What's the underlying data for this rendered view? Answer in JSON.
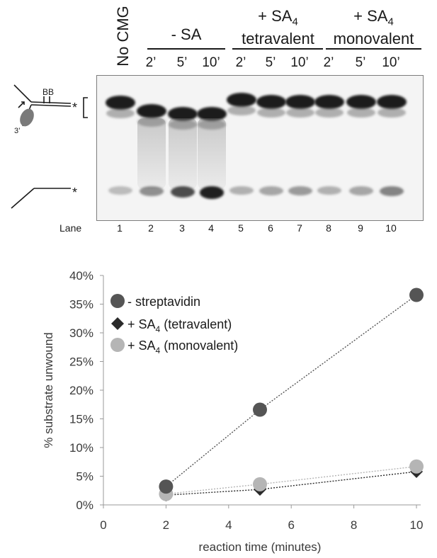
{
  "gel_panel": {
    "headers": {
      "no_cmg": "No CMG",
      "minus_sa": "- SA",
      "tetra_line1": "+ SA4",
      "tetra_line2": "tetravalent",
      "mono_line1": "+ SA4",
      "mono_line2": "monovalent"
    },
    "time_labels": [
      "2’",
      "5’",
      "10’",
      "2’",
      "5’",
      "10’",
      "2’",
      "5’",
      "10’"
    ],
    "lane_label": "Lane",
    "lane_numbers": [
      "1",
      "2",
      "3",
      "4",
      "5",
      "6",
      "7",
      "8",
      "9",
      "10"
    ],
    "diagram": {
      "biotin_label": "BB",
      "three_prime_label": "3’",
      "star_label": "*"
    }
  },
  "chart_data": {
    "type": "scatter",
    "xlabel": "reaction time (minutes)",
    "ylabel": "% substrate unwound",
    "xlim": [
      0,
      10
    ],
    "ylim": [
      0,
      0.4
    ],
    "x_ticks": [
      "0",
      "2",
      "4",
      "6",
      "8",
      "10"
    ],
    "y_ticks": [
      "0%",
      "5%",
      "10%",
      "15%",
      "20%",
      "25%",
      "30%",
      "35%",
      "40%"
    ],
    "grid": false,
    "legend_position": "top-left",
    "series": [
      {
        "name": "- streptavidin",
        "marker": "circle",
        "color": "#555555",
        "trendline": "dotted",
        "x": [
          2,
          5,
          10
        ],
        "y": [
          0.032,
          0.166,
          0.366
        ]
      },
      {
        "name": "+ SA4 (tetravalent)",
        "marker": "diamond",
        "color": "#2a2a2a",
        "trendline": "dotted",
        "x": [
          2,
          5,
          10
        ],
        "y": [
          0.017,
          0.027,
          0.058
        ]
      },
      {
        "name": "+ SA4 (monovalent)",
        "marker": "circle",
        "color": "#b5b5b5",
        "trendline": "dotted",
        "x": [
          2,
          5,
          10
        ],
        "y": [
          0.019,
          0.036,
          0.067
        ]
      }
    ]
  }
}
